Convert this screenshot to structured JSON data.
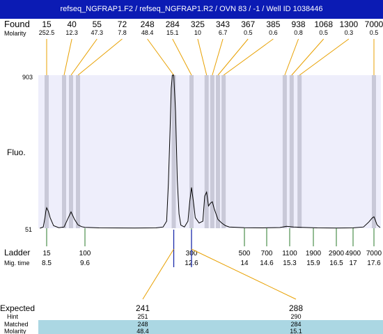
{
  "header": {
    "title": "refseq_NGFRAP1.F2 / refseq_NGFRAP1.R2 / OVN 83 / -1 / Well ID 1038446"
  },
  "colors": {
    "title_bg": "#0b1bb4",
    "plot_bg": "#eeeefb",
    "band": "#c9c9d8",
    "found_line": "#e8a000",
    "ladder_line": "#2a7a2a",
    "trace": "#000000",
    "marker": "#1a2aaa",
    "table_highlight": "#abd7e3"
  },
  "chart_data": {
    "type": "line",
    "title": "refseq_NGFRAP1.F2 / refseq_NGFRAP1.R2 / OVN 83 / -1 / Well ID 1038446",
    "ylabel": "Fluo.",
    "ylim": [
      51,
      903
    ],
    "y_ticks": [
      "903",
      "51"
    ],
    "found_label": "Found",
    "molarity_label": "Molarity",
    "found": [
      {
        "size": "15",
        "molarity": "252.5",
        "mig": 8.5
      },
      {
        "size": "40",
        "molarity": "12.3",
        "mig": 9.0
      },
      {
        "size": "55",
        "molarity": "47.3",
        "mig": 9.2
      },
      {
        "size": "72",
        "molarity": "7.8",
        "mig": 9.4
      },
      {
        "size": "248",
        "molarity": "48.4",
        "mig": 12.1
      },
      {
        "size": "284",
        "molarity": "15.1",
        "mig": 12.6
      },
      {
        "size": "325",
        "molarity": "10",
        "mig": 13.0
      },
      {
        "size": "343",
        "molarity": "6.7",
        "mig": 13.15
      },
      {
        "size": "367",
        "molarity": "0.5",
        "mig": 13.3
      },
      {
        "size": "385",
        "molarity": "0.6",
        "mig": 13.45
      },
      {
        "size": "938",
        "molarity": "0.8",
        "mig": 15.15
      },
      {
        "size": "1068",
        "molarity": "0.5",
        "mig": 15.35
      },
      {
        "size": "1300",
        "molarity": "0.3",
        "mig": 15.55
      },
      {
        "size": "7000",
        "molarity": "0.5",
        "mig": 17.6
      }
    ],
    "ladder_label": "Ladder",
    "migtime_label": "Mig. time",
    "ladder": [
      {
        "size": "15",
        "mig": "8.5"
      },
      {
        "size": "100",
        "mig": "9.6"
      },
      {
        "size": "300",
        "mig": "12.6"
      },
      {
        "size": "500",
        "mig": "14"
      },
      {
        "size": "700",
        "mig": "14.6"
      },
      {
        "size": "1100",
        "mig": "15.3"
      },
      {
        "size": "1900",
        "mig": "15.9"
      },
      {
        "size": "2900",
        "mig": "16.5"
      },
      {
        "size": "4900",
        "mig": "17"
      },
      {
        "size": "7000",
        "mig": "17.6"
      }
    ],
    "trace": [
      [
        8.1,
        51
      ],
      [
        8.3,
        58
      ],
      [
        8.4,
        110
      ],
      [
        8.45,
        145
      ],
      [
        8.5,
        165
      ],
      [
        8.55,
        145
      ],
      [
        8.6,
        110
      ],
      [
        8.7,
        65
      ],
      [
        8.85,
        54
      ],
      [
        9.0,
        58
      ],
      [
        9.1,
        100
      ],
      [
        9.2,
        142
      ],
      [
        9.3,
        100
      ],
      [
        9.4,
        70
      ],
      [
        9.5,
        60
      ],
      [
        9.6,
        56
      ],
      [
        10.0,
        53
      ],
      [
        11.0,
        52
      ],
      [
        11.6,
        53
      ],
      [
        11.8,
        58
      ],
      [
        11.9,
        90
      ],
      [
        11.95,
        300
      ],
      [
        12.0,
        620
      ],
      [
        12.03,
        830
      ],
      [
        12.06,
        903
      ],
      [
        12.1,
        903
      ],
      [
        12.15,
        700
      ],
      [
        12.2,
        320
      ],
      [
        12.25,
        130
      ],
      [
        12.3,
        68
      ],
      [
        12.4,
        58
      ],
      [
        12.5,
        90
      ],
      [
        12.55,
        200
      ],
      [
        12.6,
        278
      ],
      [
        12.65,
        200
      ],
      [
        12.7,
        110
      ],
      [
        12.8,
        80
      ],
      [
        12.9,
        90
      ],
      [
        12.95,
        230
      ],
      [
        13.0,
        252
      ],
      [
        13.05,
        175
      ],
      [
        13.1,
        190
      ],
      [
        13.15,
        198
      ],
      [
        13.2,
        160
      ],
      [
        13.3,
        100
      ],
      [
        13.4,
        80
      ],
      [
        13.5,
        65
      ],
      [
        13.6,
        58
      ],
      [
        14.0,
        54
      ],
      [
        14.5,
        53
      ],
      [
        15.0,
        55
      ],
      [
        15.2,
        62
      ],
      [
        15.4,
        58
      ],
      [
        15.6,
        56
      ],
      [
        16.0,
        53
      ],
      [
        16.5,
        52
      ],
      [
        17.0,
        53
      ],
      [
        17.3,
        58
      ],
      [
        17.45,
        85
      ],
      [
        17.55,
        108
      ],
      [
        17.6,
        115
      ],
      [
        17.65,
        105
      ],
      [
        17.8,
        70
      ],
      [
        18.0,
        55
      ]
    ],
    "bands": [
      8.5,
      9.0,
      9.2,
      9.4,
      12.1,
      12.6,
      13.0,
      13.15,
      13.3,
      13.45,
      15.15,
      15.35,
      15.55,
      17.6
    ],
    "markers": [
      12.1,
      12.6
    ],
    "table": {
      "labels": [
        "Expected",
        "Hint",
        "Matched",
        "Molarity"
      ],
      "columns": [
        {
          "expected": "241",
          "hint": "251",
          "matched": "248",
          "molarity": "48.4"
        },
        {
          "expected": "288",
          "hint": "290",
          "matched": "284",
          "molarity": "15.1"
        }
      ]
    }
  }
}
